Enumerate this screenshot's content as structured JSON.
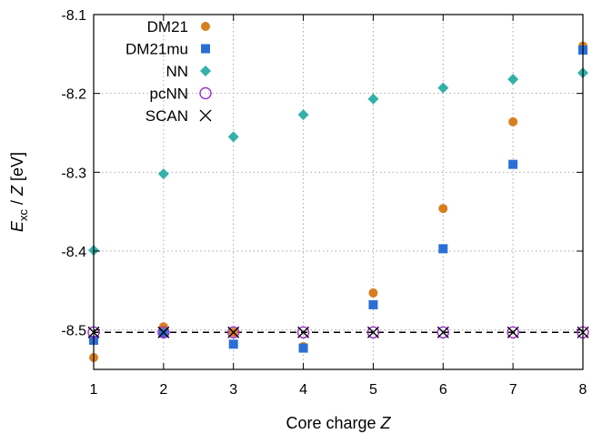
{
  "chart_data": {
    "type": "scatter",
    "xlabel": {
      "text": "Core charge ",
      "italic": "Z"
    },
    "ylabel": {
      "main": "E",
      "sub": "xc",
      "tail": " / ",
      "italic": "Z",
      "unit": " [eV]"
    },
    "xlim": [
      1,
      8
    ],
    "ylim": [
      -8.55,
      -8.1
    ],
    "xticks": [
      1,
      2,
      3,
      4,
      5,
      6,
      7,
      8
    ],
    "yticks": [
      {
        "value": -8.1,
        "label": "-8.1"
      },
      {
        "value": -8.2,
        "label": "-8.2"
      },
      {
        "value": -8.3,
        "label": "-8.3"
      },
      {
        "value": -8.4,
        "label": "-8.4"
      },
      {
        "value": -8.5,
        "label": "-8.5"
      }
    ],
    "grid": true,
    "legend_position": "top-left",
    "reference_line": {
      "y": -8.503,
      "style": "dashed",
      "color": "#000000"
    },
    "series": [
      {
        "name": "DM21",
        "marker": "circle-filled",
        "color": "#d97e1f",
        "x": [
          1,
          2,
          3,
          4,
          5,
          6,
          7,
          8
        ],
        "y": [
          -8.535,
          -8.496,
          -8.503,
          -8.521,
          -8.453,
          -8.346,
          -8.236,
          -8.14
        ]
      },
      {
        "name": "DM21mu",
        "marker": "square-filled",
        "color": "#2b6fd6",
        "x": [
          1,
          2,
          3,
          4,
          5,
          6,
          7,
          8
        ],
        "y": [
          -8.513,
          -8.504,
          -8.518,
          -8.523,
          -8.468,
          -8.397,
          -8.29,
          -8.145
        ]
      },
      {
        "name": "NN",
        "marker": "diamond-filled",
        "color": "#33b1a9",
        "x": [
          1,
          2,
          3,
          4,
          5,
          6,
          7,
          8
        ],
        "y": [
          -8.399,
          -8.302,
          -8.255,
          -8.227,
          -8.207,
          -8.193,
          -8.182,
          -8.174
        ]
      },
      {
        "name": "pcNN",
        "marker": "circle-open",
        "color": "#9b2fc8",
        "x": [
          1,
          2,
          3,
          4,
          5,
          6,
          7,
          8
        ],
        "y": [
          -8.503,
          -8.503,
          -8.503,
          -8.503,
          -8.503,
          -8.503,
          -8.503,
          -8.503
        ]
      },
      {
        "name": "SCAN",
        "marker": "cross",
        "color": "#000000",
        "x": [
          1,
          2,
          3,
          4,
          5,
          6,
          7,
          8
        ],
        "y": [
          -8.503,
          -8.503,
          -8.503,
          -8.503,
          -8.503,
          -8.503,
          -8.503,
          -8.503
        ]
      }
    ]
  }
}
